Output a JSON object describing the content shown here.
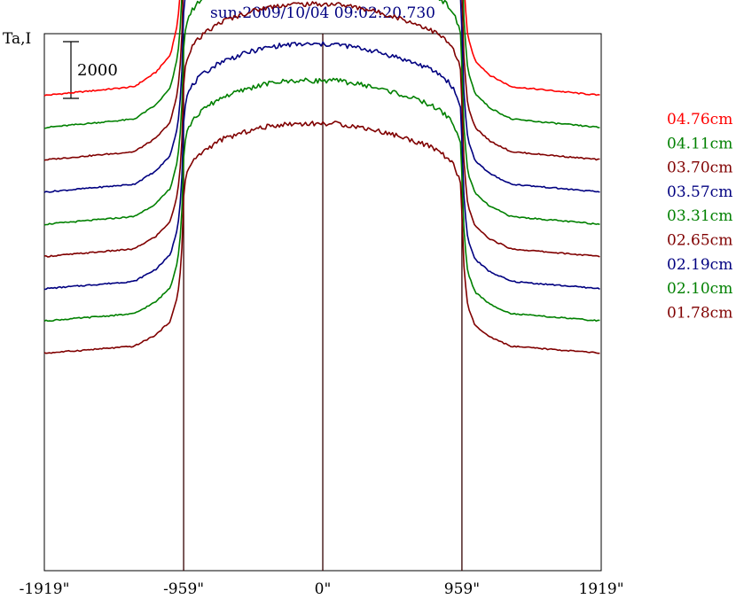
{
  "chart_data": {
    "type": "line",
    "title": "sun:2009/10/04 09:02:20.730",
    "ylabel": "Ta,I",
    "scale_bar_label": "2000",
    "scale_bar_value": 2000,
    "xlim": [
      -1919,
      1919
    ],
    "ylim": [
      0,
      20000
    ],
    "xticks": [
      {
        "value": -1919,
        "label": "-1919\""
      },
      {
        "value": -959,
        "label": "-959\""
      },
      {
        "value": 0,
        "label": "0\""
      },
      {
        "value": 959,
        "label": "959\""
      },
      {
        "value": 1919,
        "label": "1919\""
      }
    ],
    "vlines": [
      -959,
      0,
      959
    ],
    "grid": false,
    "legend_placement": "right",
    "profile": {
      "x": [
        -1919,
        -1300,
        -1150,
        -1050,
        -1000,
        -975,
        -965,
        -959,
        -950,
        -940,
        -920,
        -900,
        -860,
        -800,
        -700,
        -600,
        -500,
        -400,
        -300,
        -200,
        -100,
        0,
        100,
        200,
        300,
        400,
        500,
        600,
        700,
        800,
        860,
        900,
        920,
        940,
        950,
        955,
        959,
        965,
        975,
        1000,
        1050,
        1150,
        1300,
        1919
      ],
      "rel": [
        0,
        0.03,
        0.08,
        0.14,
        0.25,
        0.4,
        0.55,
        0.68,
        0.74,
        0.78,
        0.81,
        0.83,
        0.86,
        0.89,
        0.93,
        0.95,
        0.97,
        0.985,
        0.995,
        1.0,
        1.0,
        1.0,
        1.0,
        0.99,
        0.98,
        0.965,
        0.95,
        0.93,
        0.91,
        0.88,
        0.85,
        0.82,
        0.79,
        0.76,
        0.74,
        0.7,
        0.62,
        0.5,
        0.35,
        0.2,
        0.12,
        0.07,
        0.03,
        0
      ]
    },
    "series": [
      {
        "name": "04.76cm",
        "color": "#ff0000",
        "baseline": 17700,
        "amplitude": 10800,
        "limb_peak": 750
      },
      {
        "name": "04.11cm",
        "color": "#008000",
        "baseline": 16500,
        "amplitude": 10600,
        "limb_peak": 250
      },
      {
        "name": "03.70cm",
        "color": "#800000",
        "baseline": 15300,
        "amplitude": 10100,
        "limb_peak": 0
      },
      {
        "name": "03.57cm",
        "color": "#000080",
        "baseline": 14100,
        "amplitude": 9800,
        "limb_peak": 0
      },
      {
        "name": "03.31cm",
        "color": "#008000",
        "baseline": 12900,
        "amplitude": 9600,
        "limb_peak": 0
      },
      {
        "name": "02.65cm",
        "color": "#800000",
        "baseline": 11700,
        "amplitude": 9400,
        "limb_peak": 0
      },
      {
        "name": "02.19cm",
        "color": "#000080",
        "baseline": 10500,
        "amplitude": 9100,
        "limb_peak": 0
      },
      {
        "name": "02.10cm",
        "color": "#008000",
        "baseline": 9300,
        "amplitude": 8950,
        "limb_peak": 0
      },
      {
        "name": "01.78cm",
        "color": "#800000",
        "baseline": 8100,
        "amplitude": 8550,
        "limb_peak": 0
      }
    ]
  }
}
